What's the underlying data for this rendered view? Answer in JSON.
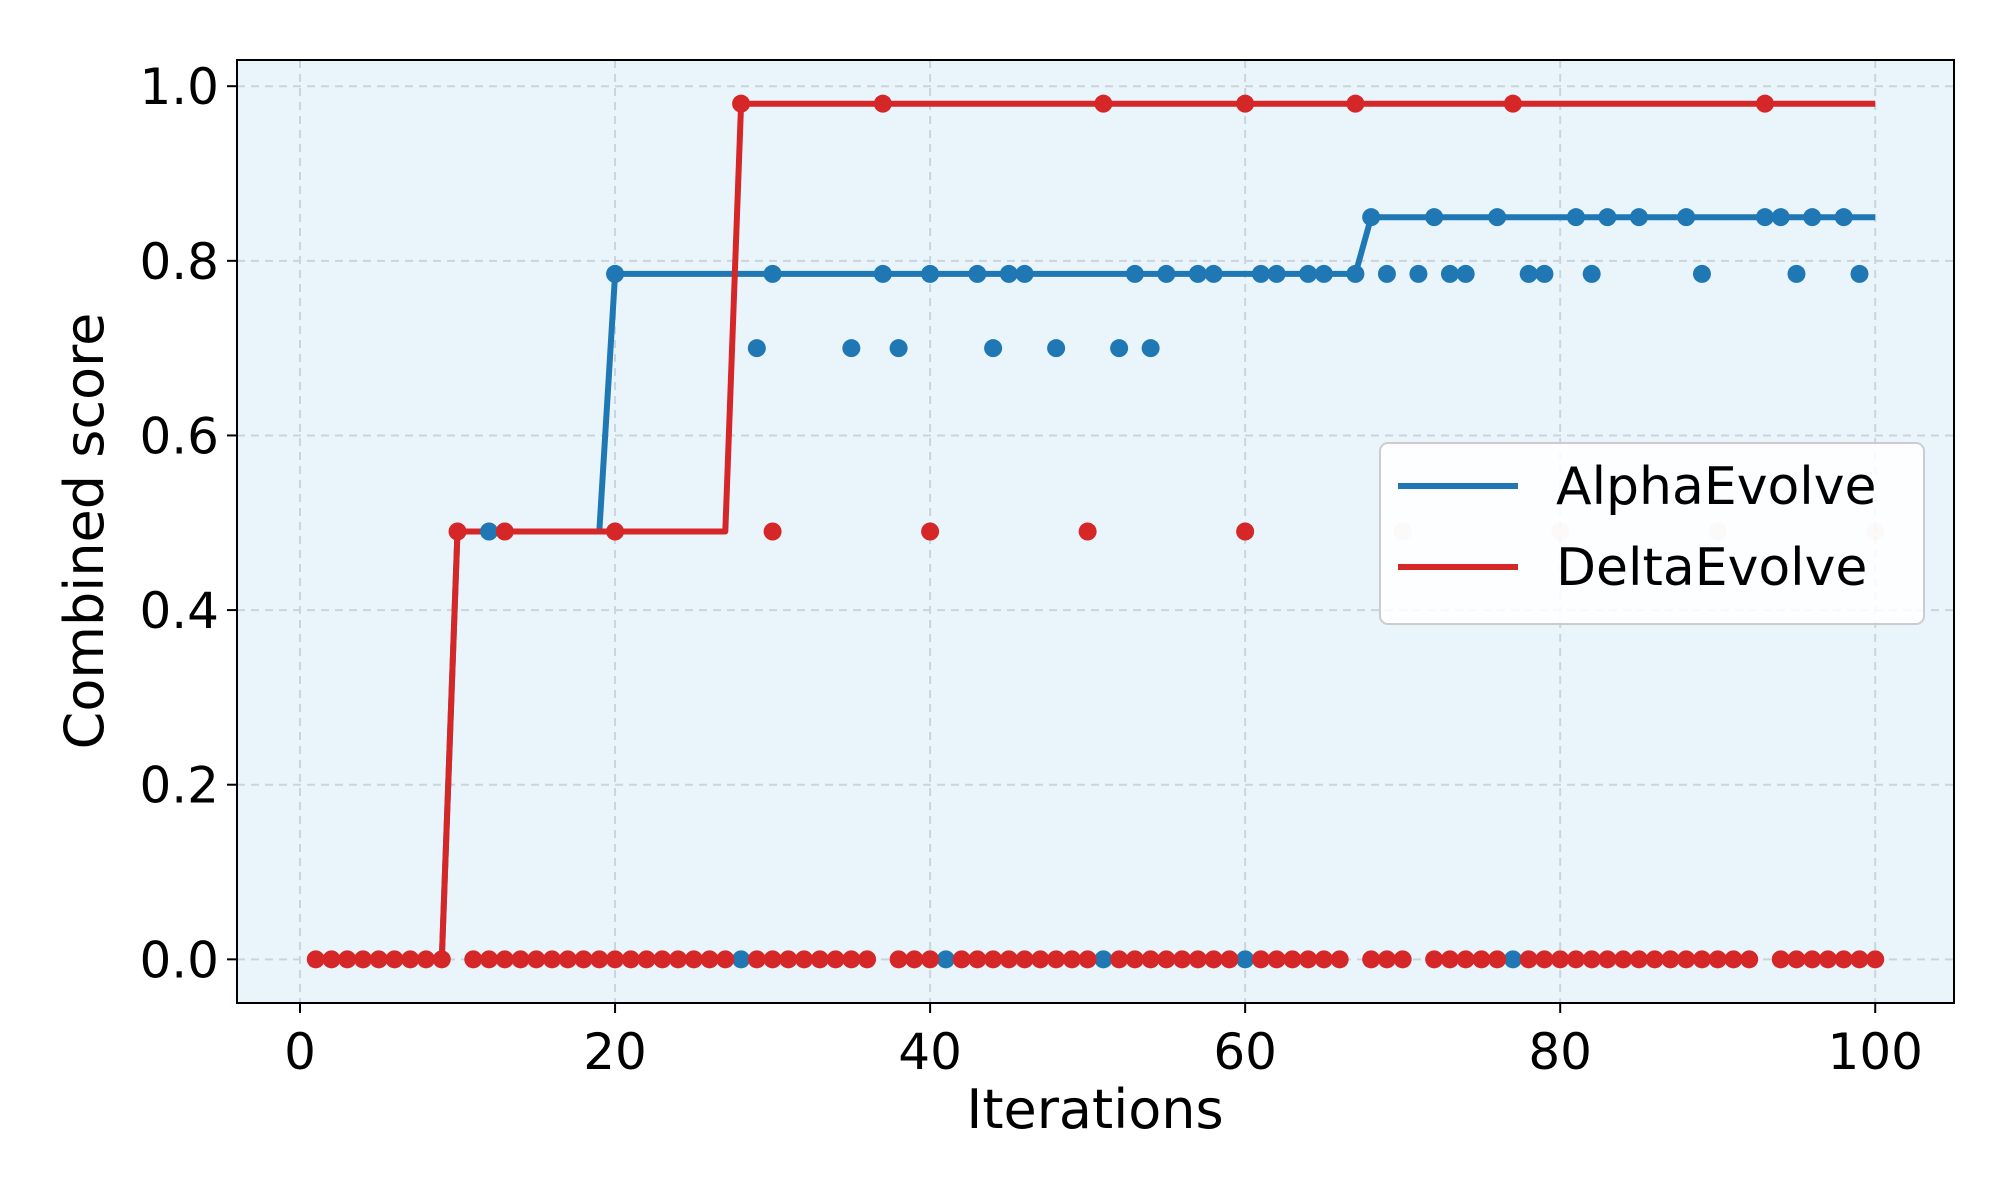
{
  "chart_data": {
    "type": "line",
    "xlabel": "Iterations",
    "ylabel": "Combined score",
    "xlim": [
      -4,
      105
    ],
    "ylim": [
      -0.05,
      1.03
    ],
    "xticks": [
      0,
      20,
      40,
      60,
      80,
      100
    ],
    "yticks": [
      0.0,
      0.2,
      0.4,
      0.6,
      0.8,
      1.0
    ],
    "xtick_labels": [
      "0",
      "20",
      "40",
      "60",
      "80",
      "100"
    ],
    "ytick_labels": [
      "0.0",
      "0.2",
      "0.4",
      "0.6",
      "0.8",
      "1.0"
    ],
    "grid": true,
    "legend_position": "center-right",
    "background": "#eaf5fb",
    "series": [
      {
        "name": "AlphaEvolve",
        "color": "#1f77b4",
        "best_line": {
          "x": [
            1,
            2,
            3,
            4,
            5,
            6,
            7,
            8,
            9,
            10,
            11,
            12,
            13,
            14,
            15,
            16,
            17,
            18,
            19,
            20,
            21,
            22,
            23,
            24,
            25,
            26,
            27,
            28,
            29,
            30,
            31,
            32,
            33,
            34,
            35,
            36,
            37,
            38,
            39,
            40,
            41,
            42,
            43,
            44,
            45,
            46,
            47,
            48,
            49,
            50,
            51,
            52,
            53,
            54,
            55,
            56,
            57,
            58,
            59,
            60,
            61,
            62,
            63,
            64,
            65,
            66,
            67,
            68,
            69,
            70,
            71,
            72,
            73,
            74,
            75,
            76,
            77,
            78,
            79,
            80,
            81,
            82,
            83,
            84,
            85,
            86,
            87,
            88,
            89,
            90,
            91,
            92,
            93,
            94,
            95,
            96,
            97,
            98,
            99,
            100
          ],
          "y": [
            0.0,
            0.0,
            0.0,
            0.0,
            0.0,
            0.0,
            0.0,
            0.0,
            0.0,
            0.49,
            0.49,
            0.49,
            0.49,
            0.49,
            0.49,
            0.49,
            0.49,
            0.49,
            0.49,
            0.785,
            0.785,
            0.785,
            0.785,
            0.785,
            0.785,
            0.785,
            0.785,
            0.785,
            0.785,
            0.785,
            0.785,
            0.785,
            0.785,
            0.785,
            0.785,
            0.785,
            0.785,
            0.785,
            0.785,
            0.785,
            0.785,
            0.785,
            0.785,
            0.785,
            0.785,
            0.785,
            0.785,
            0.785,
            0.785,
            0.785,
            0.785,
            0.785,
            0.785,
            0.785,
            0.785,
            0.785,
            0.785,
            0.785,
            0.785,
            0.785,
            0.785,
            0.785,
            0.785,
            0.785,
            0.785,
            0.785,
            0.785,
            0.85,
            0.85,
            0.85,
            0.85,
            0.85,
            0.85,
            0.85,
            0.85,
            0.85,
            0.85,
            0.85,
            0.85,
            0.85,
            0.85,
            0.85,
            0.85,
            0.85,
            0.85,
            0.85,
            0.85,
            0.85,
            0.85,
            0.85,
            0.85,
            0.85,
            0.85,
            0.85,
            0.85,
            0.85,
            0.85,
            0.85,
            0.85,
            0.85
          ]
        },
        "points": [
          [
            12,
            0.49
          ],
          [
            20,
            0.785
          ],
          [
            29,
            0.7
          ],
          [
            30,
            0.785
          ],
          [
            35,
            0.7
          ],
          [
            37,
            0.785
          ],
          [
            38,
            0.7
          ],
          [
            40,
            0.785
          ],
          [
            43,
            0.785
          ],
          [
            44,
            0.7
          ],
          [
            45,
            0.785
          ],
          [
            46,
            0.785
          ],
          [
            48,
            0.7
          ],
          [
            52,
            0.7
          ],
          [
            53,
            0.785
          ],
          [
            54,
            0.7
          ],
          [
            55,
            0.785
          ],
          [
            57,
            0.785
          ],
          [
            58,
            0.785
          ],
          [
            61,
            0.785
          ],
          [
            62,
            0.785
          ],
          [
            64,
            0.785
          ],
          [
            65,
            0.785
          ],
          [
            67,
            0.785
          ],
          [
            68,
            0.85
          ],
          [
            69,
            0.785
          ],
          [
            71,
            0.785
          ],
          [
            72,
            0.85
          ],
          [
            73,
            0.785
          ],
          [
            74,
            0.785
          ],
          [
            76,
            0.85
          ],
          [
            78,
            0.785
          ],
          [
            79,
            0.785
          ],
          [
            81,
            0.85
          ],
          [
            82,
            0.785
          ],
          [
            83,
            0.85
          ],
          [
            85,
            0.85
          ],
          [
            88,
            0.85
          ],
          [
            89,
            0.785
          ],
          [
            93,
            0.85
          ],
          [
            94,
            0.85
          ],
          [
            95,
            0.785
          ],
          [
            96,
            0.85
          ],
          [
            98,
            0.85
          ],
          [
            99,
            0.785
          ],
          [
            28,
            0.0
          ],
          [
            41,
            0.0
          ],
          [
            51,
            0.0
          ],
          [
            60,
            0.0
          ],
          [
            77,
            0.0
          ]
        ]
      },
      {
        "name": "DeltaEvolve",
        "color": "#d62728",
        "best_line": {
          "x": [
            1,
            2,
            3,
            4,
            5,
            6,
            7,
            8,
            9,
            10,
            11,
            12,
            13,
            14,
            15,
            16,
            17,
            18,
            19,
            20,
            21,
            22,
            23,
            24,
            25,
            26,
            27,
            28,
            29,
            30,
            31,
            32,
            33,
            34,
            35,
            36,
            37,
            38,
            39,
            40,
            41,
            42,
            43,
            44,
            45,
            46,
            47,
            48,
            49,
            50,
            51,
            52,
            53,
            54,
            55,
            56,
            57,
            58,
            59,
            60,
            61,
            62,
            63,
            64,
            65,
            66,
            67,
            68,
            69,
            70,
            71,
            72,
            73,
            74,
            75,
            76,
            77,
            78,
            79,
            80,
            81,
            82,
            83,
            84,
            85,
            86,
            87,
            88,
            89,
            90,
            91,
            92,
            93,
            94,
            95,
            96,
            97,
            98,
            99,
            100
          ],
          "y": [
            0.0,
            0.0,
            0.0,
            0.0,
            0.0,
            0.0,
            0.0,
            0.0,
            0.0,
            0.49,
            0.49,
            0.49,
            0.49,
            0.49,
            0.49,
            0.49,
            0.49,
            0.49,
            0.49,
            0.49,
            0.49,
            0.49,
            0.49,
            0.49,
            0.49,
            0.49,
            0.49,
            0.98,
            0.98,
            0.98,
            0.98,
            0.98,
            0.98,
            0.98,
            0.98,
            0.98,
            0.98,
            0.98,
            0.98,
            0.98,
            0.98,
            0.98,
            0.98,
            0.98,
            0.98,
            0.98,
            0.98,
            0.98,
            0.98,
            0.98,
            0.98,
            0.98,
            0.98,
            0.98,
            0.98,
            0.98,
            0.98,
            0.98,
            0.98,
            0.98,
            0.98,
            0.98,
            0.98,
            0.98,
            0.98,
            0.98,
            0.98,
            0.98,
            0.98,
            0.98,
            0.98,
            0.98,
            0.98,
            0.98,
            0.98,
            0.98,
            0.98,
            0.98,
            0.98,
            0.98,
            0.98,
            0.98,
            0.98,
            0.98,
            0.98,
            0.98,
            0.98,
            0.98,
            0.98,
            0.98,
            0.98,
            0.98,
            0.98,
            0.98,
            0.98,
            0.98,
            0.98,
            0.98,
            0.98,
            0.98
          ]
        },
        "points": [
          [
            10,
            0.49
          ],
          [
            13,
            0.49
          ],
          [
            20,
            0.49
          ],
          [
            28,
            0.98
          ],
          [
            30,
            0.49
          ],
          [
            37,
            0.98
          ],
          [
            40,
            0.49
          ],
          [
            50,
            0.49
          ],
          [
            51,
            0.98
          ],
          [
            60,
            0.49
          ],
          [
            60,
            0.98
          ],
          [
            67,
            0.98
          ],
          [
            77,
            0.98
          ],
          [
            93,
            0.98
          ],
          [
            1,
            0.0
          ],
          [
            2,
            0.0
          ],
          [
            3,
            0.0
          ],
          [
            4,
            0.0
          ],
          [
            5,
            0.0
          ],
          [
            6,
            0.0
          ],
          [
            7,
            0.0
          ],
          [
            8,
            0.0
          ],
          [
            9,
            0.0
          ],
          [
            11,
            0.0
          ],
          [
            12,
            0.0
          ],
          [
            13,
            0.0
          ],
          [
            14,
            0.0
          ],
          [
            15,
            0.0
          ],
          [
            16,
            0.0
          ],
          [
            17,
            0.0
          ],
          [
            18,
            0.0
          ],
          [
            19,
            0.0
          ],
          [
            20,
            0.0
          ],
          [
            21,
            0.0
          ],
          [
            22,
            0.0
          ],
          [
            23,
            0.0
          ],
          [
            24,
            0.0
          ],
          [
            25,
            0.0
          ],
          [
            26,
            0.0
          ],
          [
            27,
            0.0
          ],
          [
            29,
            0.0
          ],
          [
            30,
            0.0
          ],
          [
            31,
            0.0
          ],
          [
            32,
            0.0
          ],
          [
            33,
            0.0
          ],
          [
            34,
            0.0
          ],
          [
            35,
            0.0
          ],
          [
            36,
            0.0
          ],
          [
            38,
            0.0
          ],
          [
            39,
            0.0
          ],
          [
            40,
            0.0
          ],
          [
            42,
            0.0
          ],
          [
            43,
            0.0
          ],
          [
            44,
            0.0
          ],
          [
            45,
            0.0
          ],
          [
            46,
            0.0
          ],
          [
            47,
            0.0
          ],
          [
            48,
            0.0
          ],
          [
            49,
            0.0
          ],
          [
            50,
            0.0
          ],
          [
            52,
            0.0
          ],
          [
            53,
            0.0
          ],
          [
            54,
            0.0
          ],
          [
            55,
            0.0
          ],
          [
            56,
            0.0
          ],
          [
            57,
            0.0
          ],
          [
            58,
            0.0
          ],
          [
            59,
            0.0
          ],
          [
            61,
            0.0
          ],
          [
            62,
            0.0
          ],
          [
            63,
            0.0
          ],
          [
            64,
            0.0
          ],
          [
            65,
            0.0
          ],
          [
            66,
            0.0
          ],
          [
            68,
            0.0
          ],
          [
            69,
            0.0
          ],
          [
            70,
            0.0
          ],
          [
            72,
            0.0
          ],
          [
            73,
            0.0
          ],
          [
            74,
            0.0
          ],
          [
            75,
            0.0
          ],
          [
            76,
            0.0
          ],
          [
            78,
            0.0
          ],
          [
            79,
            0.0
          ],
          [
            80,
            0.0
          ],
          [
            81,
            0.0
          ],
          [
            82,
            0.0
          ],
          [
            83,
            0.0
          ],
          [
            84,
            0.0
          ],
          [
            85,
            0.0
          ],
          [
            86,
            0.0
          ],
          [
            87,
            0.0
          ],
          [
            88,
            0.0
          ],
          [
            89,
            0.0
          ],
          [
            90,
            0.0
          ],
          [
            91,
            0.0
          ],
          [
            92,
            0.0
          ],
          [
            94,
            0.0
          ],
          [
            95,
            0.0
          ],
          [
            96,
            0.0
          ],
          [
            97,
            0.0
          ],
          [
            98,
            0.0
          ],
          [
            99,
            0.0
          ],
          [
            100,
            0.0
          ]
        ],
        "faded_points": [
          [
            70,
            0.49
          ],
          [
            80,
            0.49
          ],
          [
            90,
            0.49
          ],
          [
            100,
            0.49
          ]
        ]
      }
    ]
  }
}
